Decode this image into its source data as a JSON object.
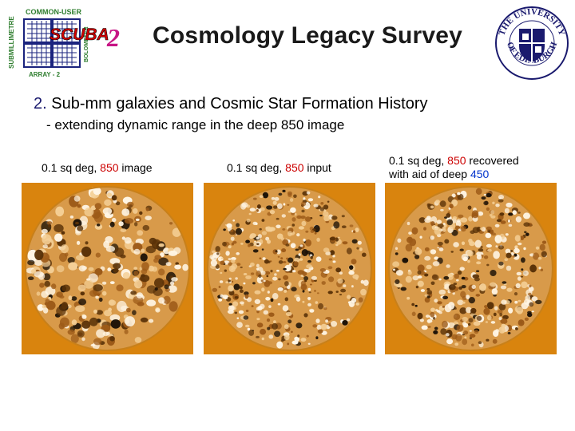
{
  "logo": {
    "top_arc": "COMMON-USER",
    "left_vertical": "SUBMILLIMETRE",
    "right_vertical": "BOLOMETER",
    "wordmark": "SCUBA",
    "version_numeral": "2",
    "bottom": "ARRAY - 2"
  },
  "university_seal": {
    "text_top": "THE UNIVERSITY",
    "text_bottom": "OF EDINBURGH"
  },
  "title": "Cosmology Legacy Survey",
  "heading": {
    "number": "2.",
    "text": "Sub-mm galaxies and Cosmic Star Formation History"
  },
  "subheading": "- extending dynamic range in the deep 850 image",
  "panels": [
    {
      "caption_pre": "0.1 sq deg, ",
      "caption_highlight": "850",
      "caption_post": " image"
    },
    {
      "caption_pre": "0.1 sq deg, ",
      "caption_highlight": "850",
      "caption_post": " input"
    },
    {
      "caption_pre": "0.1 sq deg, ",
      "caption_highlight": "850",
      "caption_post": " recovered",
      "caption_line2_pre": "with aid of deep ",
      "caption_line2_highlight": "450"
    }
  ],
  "colors": {
    "map_background": "#d9840e",
    "red_highlight": "#cc0000",
    "blue_highlight": "#0033cc",
    "seal_blue": "#1a1a6e"
  }
}
